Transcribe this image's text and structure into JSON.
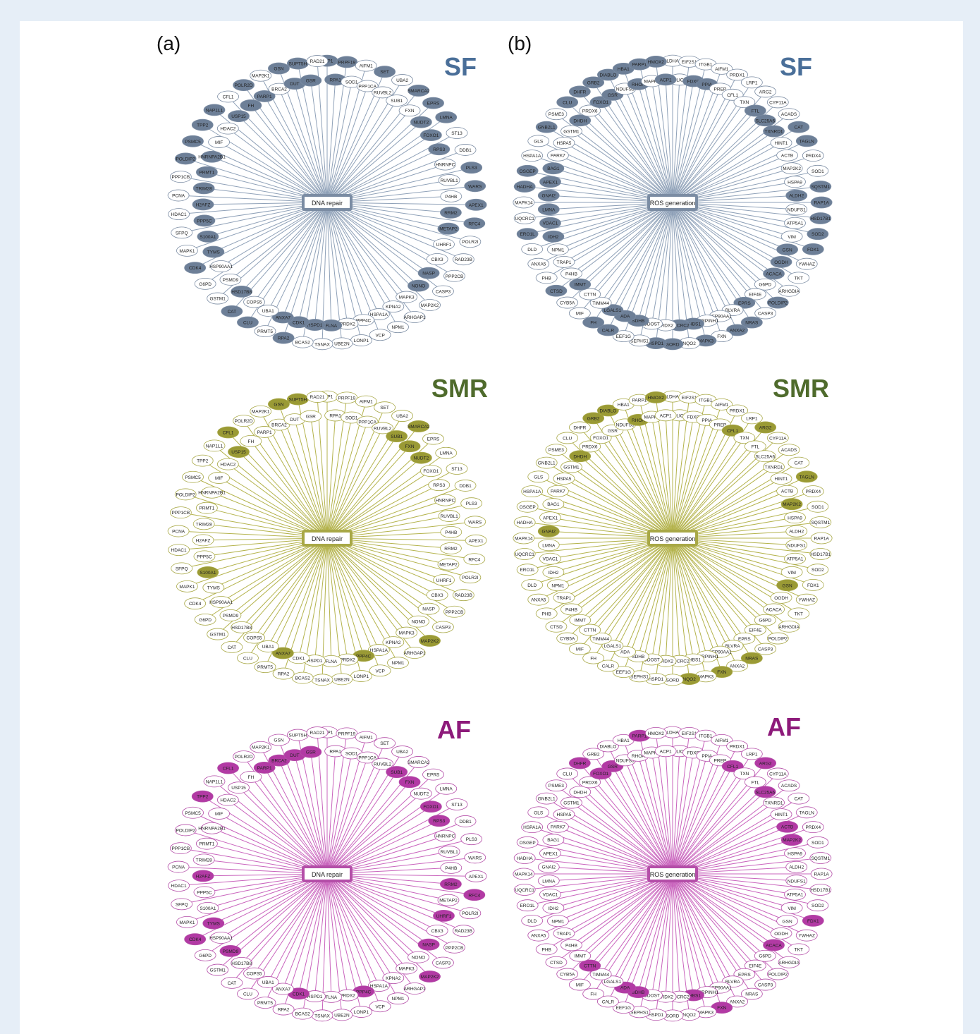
{
  "panel_labels": {
    "a": "(a)",
    "b": "(b)"
  },
  "conditions": [
    {
      "name": "SF",
      "color": "#4a6f99",
      "node_fill": "#6d7f97",
      "edge": "#8fa1b8",
      "stroke": "#7b8ca3"
    },
    {
      "name": "SMR",
      "color": "#4f6b2c",
      "node_fill": "#9a9a35",
      "edge": "#b4b34c",
      "stroke": "#a8a846"
    },
    {
      "name": "AF",
      "color": "#8d1a7a",
      "node_fill": "#b23aa4",
      "edge": "#c964bd",
      "stroke": "#b44ea8"
    }
  ],
  "networks": {
    "dna_repair": {
      "hub": "DNA repair",
      "genes": [
        "TCP1",
        "RPA1",
        "PRPF19",
        "SOD1",
        "AIFM1",
        "PPP1CA",
        "SET",
        "RUVBL2",
        "UBA2",
        "SUB1",
        "SMARCA2",
        "FXN",
        "EPRS",
        "NUDT2",
        "LMNA",
        "FOXO1",
        "ST13",
        "RPS3",
        "DDB1",
        "HNRNPC",
        "PLS3",
        "RUVBL1",
        "WARS",
        "P4HB",
        "APEX1",
        "RRM2",
        "RFC4",
        "METAP2",
        "POLR2I",
        "UHRF1",
        "RAD23B",
        "CBX3",
        "PPP2CB",
        "NASP",
        "CASP3",
        "NONO",
        "MAP2K2",
        "MAPK3",
        "ARHGAP1",
        "KPNA2",
        "NPM1",
        "HSPA1A",
        "VCP",
        "PPP4C",
        "LONP1",
        "PRDX2",
        "UBE2N",
        "FLNA",
        "TSNAX",
        "HSPD1",
        "BCAS2",
        "CDK1",
        "RPA2",
        "ANXA7",
        "PRMT5",
        "UBA1",
        "CLU",
        "COPS5",
        "CAT",
        "HSD17B8",
        "GSTM1",
        "PSMD9",
        "G6PD",
        "HSP90AA1",
        "CDK4",
        "TYMS",
        "MAPK1",
        "S100A1",
        "SFPQ",
        "PPP5C",
        "HDAC1",
        "H2AFZ",
        "PCNA",
        "TRIM28",
        "PPP1CB",
        "PRMT1",
        "POLDIP2",
        "HNRNPA2B1",
        "PSMC5",
        "MIF",
        "TPP2",
        "HDAC2",
        "NAP1L1",
        "USP15",
        "CFL1",
        "FH",
        "POLR2D",
        "PARP1",
        "MAP2K1",
        "BRCA2",
        "GSN",
        "DUT",
        "SUPT5H",
        "GSR",
        "RAD21"
      ],
      "highlighted": {
        "SF": [
          "TCP1",
          "RPA1",
          "PRPF19",
          "SET",
          "SMARCA2",
          "EPRS",
          "NUDT2",
          "LMNA",
          "FOXO1",
          "RPS3",
          "PLS3",
          "WARS",
          "APEX1",
          "RRM2",
          "RFC4",
          "METAP2",
          "NASP",
          "NONO",
          "CDK1",
          "HSPD1",
          "FLNA",
          "ANXA7",
          "RPA2",
          "CLU",
          "CAT",
          "HSD17B8",
          "CDK4",
          "TYMS",
          "S100A1",
          "PPP5C",
          "H2AFZ",
          "TRIM28",
          "PRMT1",
          "POLDIP2",
          "HNRNPA2B1",
          "PSMC5",
          "TPP2",
          "NAP1L1",
          "USP15",
          "FH",
          "POLR2D",
          "PARP1",
          "GSN",
          "DUT",
          "SUPT5H",
          "GSR"
        ],
        "SMR": [
          "SUB1",
          "SMARCA2",
          "FXN",
          "NUDT2",
          "S100A1",
          "ANXA7",
          "MAP2K2",
          "PPP4C",
          "USP15",
          "CFL1",
          "GSN",
          "SUPT5H"
        ],
        "AF": [
          "SUB1",
          "FXN",
          "FOXO1",
          "RPS3",
          "RRM2",
          "RFC4",
          "UHRF1",
          "NASP",
          "MAP2K2",
          "PPP4C",
          "CDK1",
          "PSMD9",
          "CDK4",
          "TYMS",
          "H2AFZ",
          "TPP2",
          "CFL1",
          "PARP1",
          "BRCA2",
          "DUT",
          "GSR"
        ]
      }
    },
    "ros_generation": {
      "hub": "ROS generation",
      "genes": [
        "LDHA",
        "CLIC1",
        "EIF2S1",
        "FDXR",
        "ITGB1",
        "PPIA",
        "AIFM1",
        "PREP",
        "PRDX1",
        "CFL1",
        "LRP1",
        "TXN",
        "ARG2",
        "FTL",
        "CYP11A",
        "SLC25A6",
        "ACADS",
        "TXNRD1",
        "CAT",
        "HINT1",
        "TAGLN",
        "ACTB",
        "PRDX4",
        "MAP2K2",
        "SOD1",
        "HSPA9",
        "SQSTM1",
        "ALDH2",
        "RAP1A",
        "NDUFS1",
        "HSD17B1",
        "ATP5A1",
        "SOD2",
        "VIM",
        "FDX1",
        "GSN",
        "YWHAZ",
        "OGDH",
        "TKT",
        "ACACA",
        "ARHGDIA",
        "G6PD",
        "POLDIP2",
        "EIF4E",
        "CASP3",
        "EPRS",
        "NRAS",
        "BLVRA",
        "ANXA2",
        "HSP90AA1",
        "FXN",
        "SERPINH1",
        "MAPK3",
        "THBS1",
        "NQO2",
        "UQCRC2",
        "SORD",
        "PRDX2",
        "HSPD1",
        "DDOST",
        "SEPHS1",
        "SDHB",
        "EEF1G",
        "ADA",
        "CALR",
        "LGALS1",
        "FH",
        "TIMM44",
        "MIF",
        "CTTN",
        "CYB5A",
        "IMMT",
        "CTSD",
        "P4HB",
        "PHB",
        "TRAP1",
        "ANXA5",
        "NPM1",
        "DLD",
        "IDH2",
        "ERO1L",
        "VDAC1",
        "UQCRC1",
        "LMNA",
        "MAPK14",
        "GNAI2",
        "HADHA",
        "APEX1",
        "OSGEP",
        "BAG1",
        "HSPA1A",
        "PARK7",
        "GLS",
        "HSPA5",
        "GNB2L1",
        "GSTM1",
        "PSME3",
        "DHDH",
        "CLU",
        "PRDX6",
        "DHFR",
        "FOXO1",
        "GRB2",
        "GSR",
        "DIABLO",
        "NDUFS3",
        "HBA1",
        "RHOA",
        "PARP1",
        "MAPK1",
        "HMOX2",
        "ACP1"
      ],
      "highlighted": {
        "SF": [
          "FDXR",
          "PPIA",
          "PARP1",
          "RHOA",
          "HBA1",
          "HMOX2",
          "FTL",
          "SLC25A6",
          "CAT",
          "TXNRD1",
          "TAGLN",
          "SQSTM1",
          "ALDH2",
          "RAP1A",
          "HSD17B1",
          "SOD2",
          "FDX1",
          "GSN",
          "OGDH",
          "ACACA",
          "POLDIP2",
          "EPRS",
          "NRAS",
          "ANXA2",
          "MAPK3",
          "THBS1",
          "UQCRC2",
          "SORD",
          "HSPD1",
          "SDHB",
          "ADA",
          "CALR",
          "LGALS1",
          "FH",
          "IMMT",
          "CTSD",
          "ERO1L",
          "IDH2",
          "LMNA",
          "VDAC1",
          "GNAI2",
          "HADHA",
          "APEX1",
          "OSGEP",
          "BAG1",
          "GNB2L1",
          "DHDH",
          "CLU",
          "DHFR",
          "FOXO1",
          "GRB2",
          "GSR",
          "DIABLO",
          "ACP1"
        ],
        "SMR": [
          "CFL1",
          "ARG2",
          "HMOX2",
          "TAGLN",
          "MAP2K2",
          "GSN",
          "FXN",
          "NQO2",
          "NRAS",
          "GNAI2",
          "DHDH",
          "GRB2",
          "DIABLO",
          "RHOA"
        ],
        "AF": [
          "CFL1",
          "ARG2",
          "SLC25A6",
          "ACTB",
          "MAP2K2",
          "FDX1",
          "ACACA",
          "FXN",
          "THBS1",
          "SDHB",
          "ADA",
          "CTTN",
          "FOXO1",
          "GSR",
          "DHFR",
          "PARP1"
        ]
      }
    }
  }
}
